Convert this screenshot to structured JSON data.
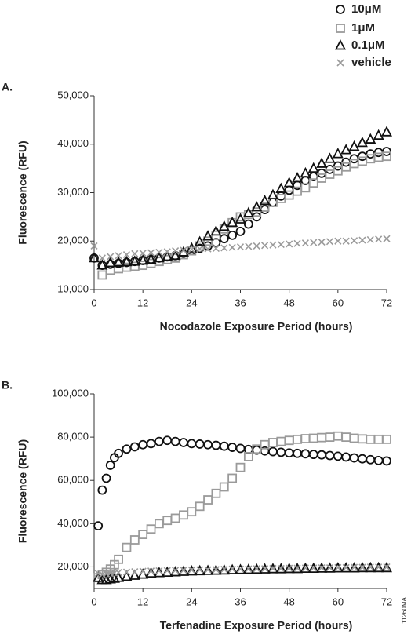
{
  "figure_id": "11260MA",
  "chart_data": [
    {
      "type": "scatter",
      "label": "A.",
      "xlabel": "Nocodazole Exposure Period (hours)",
      "ylabel": "Fluorescence (RFU)",
      "xlim": [
        0,
        72
      ],
      "xticks": [
        0,
        12,
        24,
        36,
        48,
        60,
        72
      ],
      "ylim": [
        10000,
        50000
      ],
      "yticks": [
        {
          "value": 10000,
          "label": "10,000"
        },
        {
          "value": 20000,
          "label": "20,000"
        },
        {
          "value": 30000,
          "label": "30,000"
        },
        {
          "value": 40000,
          "label": "40,000"
        },
        {
          "value": 50000,
          "label": "50,000"
        }
      ],
      "x": [
        0,
        2,
        4,
        6,
        8,
        10,
        12,
        14,
        16,
        18,
        20,
        22,
        24,
        26,
        28,
        30,
        32,
        34,
        36,
        38,
        40,
        42,
        44,
        46,
        48,
        50,
        52,
        54,
        56,
        58,
        60,
        62,
        64,
        66,
        68,
        70,
        72
      ],
      "series": [
        {
          "name": "10μM",
          "color": "#111111",
          "marker": "circle",
          "values": [
            16500,
            15000,
            15200,
            15400,
            15600,
            15800,
            16000,
            16250,
            16500,
            16750,
            17000,
            17500,
            18000,
            18500,
            19000,
            19700,
            20500,
            21200,
            22000,
            23500,
            25000,
            26500,
            28000,
            29300,
            30500,
            31500,
            32500,
            33300,
            34000,
            34800,
            35500,
            36300,
            37000,
            37500,
            38000,
            38300,
            38500
          ]
        },
        {
          "name": "1μM",
          "color": "#9a9a9a",
          "marker": "square",
          "values": [
            null,
            13000,
            14000,
            14300,
            14600,
            14800,
            15000,
            15400,
            15800,
            16200,
            16500,
            17200,
            18000,
            19000,
            20000,
            21200,
            22500,
            23800,
            25000,
            25500,
            26000,
            27000,
            28000,
            28800,
            29500,
            30300,
            31000,
            32000,
            33000,
            33800,
            34500,
            35300,
            36000,
            36500,
            37000,
            37300,
            37500
          ]
        },
        {
          "name": "0.1μM",
          "color": "#111111",
          "marker": "triangle",
          "values": [
            16500,
            15000,
            15500,
            15600,
            15700,
            15800,
            16000,
            16200,
            16500,
            16800,
            17000,
            17700,
            18500,
            19800,
            21000,
            22000,
            23000,
            23800,
            24500,
            25800,
            27000,
            28300,
            29500,
            30800,
            32000,
            33000,
            34000,
            35000,
            36000,
            37000,
            38000,
            38800,
            39500,
            40300,
            41000,
            41800,
            42500
          ]
        },
        {
          "name": "vehicle",
          "color": "#9a9a9a",
          "marker": "cross",
          "values": [
            19000,
            16500,
            16800,
            17000,
            17200,
            17400,
            17500,
            17600,
            17700,
            17800,
            18000,
            18100,
            18300,
            18400,
            18400,
            18500,
            18600,
            18700,
            18800,
            18900,
            19000,
            19100,
            19200,
            19300,
            19400,
            19500,
            19600,
            19700,
            19800,
            19900,
            20000,
            20000,
            20100,
            20200,
            20300,
            20400,
            20500
          ]
        }
      ]
    },
    {
      "type": "scatter",
      "label": "B.",
      "xlabel": "Terfenadine Exposure Period (hours)",
      "ylabel": "Fluorescence (RFU)",
      "xlim": [
        0,
        72
      ],
      "xticks": [
        0,
        12,
        24,
        36,
        48,
        60,
        72
      ],
      "ylim": [
        10000,
        100000
      ],
      "yticks": [
        {
          "value": 20000,
          "label": "20,000"
        },
        {
          "value": 40000,
          "label": "40,000"
        },
        {
          "value": 60000,
          "label": "60,000"
        },
        {
          "value": 80000,
          "label": "80,000"
        },
        {
          "value": 100000,
          "label": "100,000"
        }
      ],
      "x": [
        1,
        2,
        3,
        4,
        5,
        6,
        8,
        10,
        12,
        14,
        16,
        18,
        20,
        22,
        24,
        26,
        28,
        30,
        32,
        34,
        36,
        38,
        40,
        42,
        44,
        46,
        48,
        50,
        52,
        54,
        56,
        58,
        60,
        62,
        64,
        66,
        68,
        70,
        72
      ],
      "series": [
        {
          "color": "#111111",
          "marker": "circle",
          "values": [
            39000,
            55500,
            61000,
            67000,
            70500,
            72500,
            74500,
            75500,
            76500,
            77000,
            78000,
            78500,
            78000,
            77500,
            77000,
            76800,
            76500,
            76200,
            75800,
            75300,
            74800,
            74300,
            74000,
            73600,
            73300,
            73000,
            72700,
            72500,
            72300,
            72000,
            71800,
            71500,
            71200,
            70800,
            70400,
            70000,
            69600,
            69200,
            69000
          ]
        },
        {
          "color": "#9a9a9a",
          "marker": "square",
          "values": [
            15000,
            16500,
            17500,
            19000,
            21000,
            23500,
            29000,
            32500,
            35000,
            37500,
            40000,
            41500,
            42500,
            44000,
            45500,
            48000,
            51000,
            54000,
            57000,
            61000,
            66000,
            71000,
            74500,
            76500,
            77500,
            78000,
            78500,
            79000,
            79300,
            79500,
            79800,
            80000,
            80500,
            80000,
            79500,
            79200,
            79000,
            79000,
            79000
          ]
        },
        {
          "color": "#111111",
          "marker": "triangle",
          "values": [
            15000,
            14000,
            14000,
            14300,
            14600,
            15000,
            15500,
            16000,
            16500,
            17000,
            17200,
            17400,
            17600,
            17800,
            18000,
            18100,
            18200,
            18300,
            18400,
            18500,
            18600,
            18700,
            18800,
            18900,
            19000,
            19000,
            19100,
            19100,
            19200,
            19200,
            19300,
            19300,
            19400,
            19400,
            19400,
            19500,
            19500,
            19500,
            19500
          ]
        },
        {
          "color": "#9a9a9a",
          "marker": "cross",
          "values": [
            17000,
            16500,
            16800,
            17000,
            17200,
            17400,
            17600,
            17800,
            18000,
            18100,
            18200,
            18300,
            18400,
            18500,
            18600,
            18700,
            18700,
            18800,
            18900,
            19000,
            19000,
            19100,
            19200,
            19200,
            19300,
            19300,
            19400,
            19400,
            19500,
            19500,
            19600,
            19600,
            19700,
            19700,
            19800,
            19800,
            19900,
            19900,
            20000
          ]
        }
      ]
    }
  ]
}
